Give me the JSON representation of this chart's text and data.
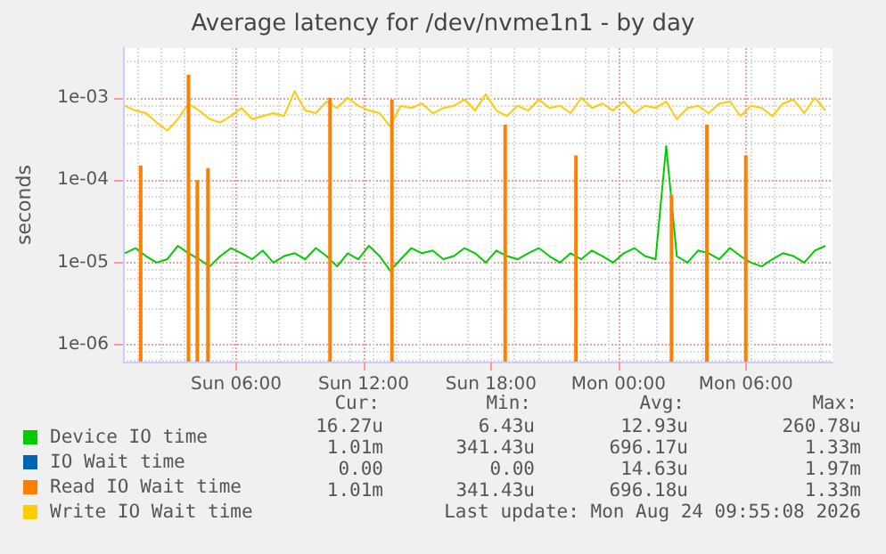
{
  "chart_data": {
    "type": "line",
    "title": "Average latency for /dev/nvme1n1 - by day",
    "ylabel": "seconds",
    "log": "y",
    "grid": true,
    "legend": "bottom",
    "marker": "none",
    "xlim": [
      "2026-08-23T00:40",
      "2026-08-24T10:05"
    ],
    "xticks": [
      {
        "value": "2026-08-23T06:00",
        "label": "Sun 06:00"
      },
      {
        "value": "2026-08-23T12:00",
        "label": "Sun 12:00"
      },
      {
        "value": "2026-08-23T18:00",
        "label": "Sun 18:00"
      },
      {
        "value": "2026-08-24T00:00",
        "label": "Mon 00:00"
      },
      {
        "value": "2026-08-24T06:00",
        "label": "Mon 06:00"
      }
    ],
    "ylim": [
      6.3e-07,
      0.004
    ],
    "yticks": [
      {
        "value": 1e-06,
        "label": "1e-06"
      },
      {
        "value": 1e-05,
        "label": "1e-05"
      },
      {
        "value": 0.0001,
        "label": "1e-04"
      },
      {
        "value": 0.001,
        "label": "1e-03"
      }
    ],
    "x": [
      "2026-08-23T00:45",
      "2026-08-23T01:15",
      "2026-08-23T01:45",
      "2026-08-23T02:15",
      "2026-08-23T02:45",
      "2026-08-23T03:15",
      "2026-08-23T03:45",
      "2026-08-23T04:15",
      "2026-08-23T04:45",
      "2026-08-23T05:15",
      "2026-08-23T05:45",
      "2026-08-23T06:15",
      "2026-08-23T06:45",
      "2026-08-23T07:15",
      "2026-08-23T07:45",
      "2026-08-23T08:15",
      "2026-08-23T08:45",
      "2026-08-23T09:15",
      "2026-08-23T09:45",
      "2026-08-23T10:15",
      "2026-08-23T10:45",
      "2026-08-23T11:15",
      "2026-08-23T11:45",
      "2026-08-23T12:15",
      "2026-08-23T12:45",
      "2026-08-23T13:15",
      "2026-08-23T13:45",
      "2026-08-23T14:15",
      "2026-08-23T14:45",
      "2026-08-23T15:15",
      "2026-08-23T15:45",
      "2026-08-23T16:15",
      "2026-08-23T16:45",
      "2026-08-23T17:15",
      "2026-08-23T17:45",
      "2026-08-23T18:15",
      "2026-08-23T18:45",
      "2026-08-23T19:15",
      "2026-08-23T19:45",
      "2026-08-23T20:15",
      "2026-08-23T20:45",
      "2026-08-23T21:15",
      "2026-08-23T21:45",
      "2026-08-23T22:15",
      "2026-08-23T22:45",
      "2026-08-23T23:15",
      "2026-08-23T23:45",
      "2026-08-24T00:15",
      "2026-08-24T00:45",
      "2026-08-24T01:15",
      "2026-08-24T01:45",
      "2026-08-24T02:15",
      "2026-08-24T02:45",
      "2026-08-24T03:15",
      "2026-08-24T03:45",
      "2026-08-24T04:15",
      "2026-08-24T04:45",
      "2026-08-24T05:15",
      "2026-08-24T05:45",
      "2026-08-24T06:15",
      "2026-08-24T06:45",
      "2026-08-24T07:15",
      "2026-08-24T07:45",
      "2026-08-24T08:15",
      "2026-08-24T08:45",
      "2026-08-24T09:15",
      "2026-08-24T09:45"
    ],
    "series": [
      {
        "name": "Device IO time",
        "color": "#00cc00",
        "values": [
          1.3e-05,
          1.5e-05,
          1.2e-05,
          1e-05,
          1.1e-05,
          1.6e-05,
          1.3e-05,
          1.1e-05,
          9e-06,
          1.2e-05,
          1.5e-05,
          1.3e-05,
          1.1e-05,
          1.4e-05,
          1e-05,
          1.2e-05,
          1.3e-05,
          1.1e-05,
          1.5e-05,
          1.2e-05,
          9e-06,
          1.3e-05,
          1.1e-05,
          1.6e-05,
          1.2e-05,
          8e-06,
          1.1e-05,
          1.5e-05,
          1.3e-05,
          1.4e-05,
          1.1e-05,
          1.2e-05,
          1.5e-05,
          1.3e-05,
          1e-05,
          1.4e-05,
          1.2e-05,
          1.1e-05,
          1.3e-05,
          1.5e-05,
          1.2e-05,
          1e-05,
          1.3e-05,
          1.1e-05,
          1.4e-05,
          1.2e-05,
          1e-05,
          1.3e-05,
          1.5e-05,
          1.2e-05,
          1.1e-05,
          0.00026,
          1.2e-05,
          1e-05,
          1.4e-05,
          1.3e-05,
          1.1e-05,
          1.5e-05,
          1.2e-05,
          1e-05,
          9e-06,
          1.1e-05,
          1.3e-05,
          1.2e-05,
          1e-05,
          1.4e-05,
          1.6e-05
        ]
      },
      {
        "name": "IO Wait time",
        "color": "#0066b3",
        "values": [
          null,
          null,
          null,
          null,
          null,
          null,
          null,
          null,
          null,
          null,
          null,
          null,
          null,
          null,
          null,
          null,
          null,
          null,
          null,
          null,
          null,
          null,
          null,
          null,
          null,
          null,
          null,
          null,
          null,
          null,
          null,
          null,
          null,
          null,
          null,
          null,
          null,
          null,
          null,
          null,
          null,
          null,
          null,
          null,
          null,
          null,
          null,
          null,
          null,
          null,
          null,
          null,
          null,
          null,
          null,
          null,
          null,
          null,
          null,
          null,
          null,
          null,
          null,
          null,
          null,
          null,
          null
        ]
      },
      {
        "name": "Read IO Wait time",
        "color": "#ff8000",
        "type": "bar",
        "x": [
          "2026-08-23T01:30",
          "2026-08-23T03:45",
          "2026-08-23T04:10",
          "2026-08-23T04:40",
          "2026-08-23T10:25",
          "2026-08-23T13:20",
          "2026-08-23T18:40",
          "2026-08-23T22:00",
          "2026-08-24T02:30",
          "2026-08-24T04:10",
          "2026-08-24T06:00"
        ],
        "values": [
          0.00015,
          0.0019,
          0.0001,
          0.00014,
          0.001,
          0.00095,
          0.00047,
          0.0002,
          6.7e-05,
          0.00047,
          0.0002
        ]
      },
      {
        "name": "Write IO Wait time",
        "color": "#ffcc00",
        "values": [
          0.0008,
          0.0007,
          0.00065,
          0.0005,
          0.0004,
          0.00055,
          0.00085,
          0.0007,
          0.00055,
          0.0005,
          0.0006,
          0.00075,
          0.00055,
          0.0006,
          0.00065,
          0.0006,
          0.0012,
          0.0007,
          0.00065,
          0.0009,
          0.00075,
          0.001,
          0.0008,
          0.0007,
          0.00065,
          0.00045,
          0.0008,
          0.00075,
          0.00085,
          0.00065,
          0.00075,
          0.0008,
          0.00095,
          0.0007,
          0.0011,
          0.0007,
          0.0006,
          0.0008,
          0.0007,
          0.00095,
          0.00075,
          0.0008,
          0.00065,
          0.001,
          0.00075,
          0.00085,
          0.0007,
          0.0009,
          0.00065,
          0.0008,
          0.00075,
          0.0009,
          0.00055,
          0.00075,
          0.0008,
          0.00065,
          0.00085,
          0.0009,
          0.0006,
          0.0008,
          0.00075,
          0.0006,
          0.00085,
          0.00095,
          0.00065,
          0.001,
          0.0007
        ]
      }
    ],
    "annotations": [
      "Cur:",
      "Min:",
      "Avg:",
      "Max:",
      "16.27u",
      "6.43u",
      "12.93u",
      "260.78u",
      "1.01m",
      "341.43u",
      "696.17u",
      "1.33m",
      "0.00",
      "0.00",
      "14.63u",
      "1.97m",
      "1.01m",
      "341.43u",
      "696.18u",
      "1.33m",
      "Last update: Mon Aug 24 09:55:08 2026"
    ]
  }
}
